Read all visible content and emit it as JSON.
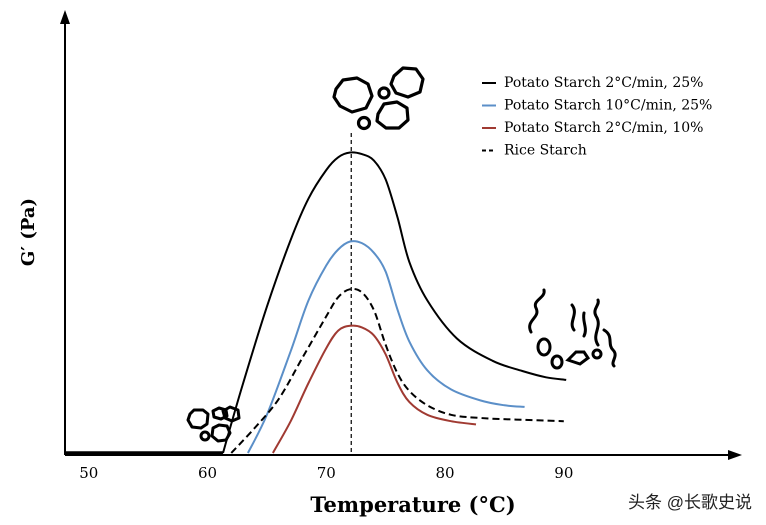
{
  "chart_data": {
    "type": "line",
    "title": "",
    "xlabel": "Temperature (°C)",
    "ylabel": "G′ (Pa)",
    "xlim": [
      48,
      105
    ],
    "ylim": [
      0,
      100
    ],
    "grid": false,
    "legend_position": "top-right",
    "x_ticks": [
      "50",
      "60",
      "70",
      "80",
      "90"
    ],
    "x_tick_values": [
      50,
      60,
      70,
      80,
      90
    ],
    "series": [
      {
        "name": "Potato Starch 2°C/min, 25%",
        "color": "#000000",
        "style": "solid",
        "x": [
          48,
          61.3,
          63,
          65,
          67,
          68.5,
          70,
          71,
          72,
          73,
          74,
          75,
          76,
          77,
          78.5,
          81,
          84,
          86.5,
          88.5,
          90.2
        ],
        "y": [
          0,
          0,
          22,
          46,
          67,
          80,
          89,
          93,
          94.5,
          94,
          92,
          86,
          74,
          60,
          48,
          36,
          29,
          25.8,
          23.8,
          23
        ]
      },
      {
        "name": "Potato Starch 10°C/min, 25%",
        "color": "#5b8fc8",
        "style": "solid",
        "x": [
          63.4,
          65,
          67,
          68.5,
          70,
          71,
          72,
          73,
          74,
          75,
          76,
          77,
          78.5,
          80.5,
          83,
          85,
          86.7
        ],
        "y": [
          0,
          12,
          32,
          48,
          59,
          64,
          66.5,
          66,
          63,
          57,
          45,
          35,
          26,
          20,
          16.5,
          15,
          14.5
        ]
      },
      {
        "name": "Potato Starch 2°C/min, 10%",
        "color": "#a03a32",
        "style": "solid",
        "x": [
          65.5,
          67,
          68.5,
          70,
          71,
          72,
          73,
          74,
          75,
          76,
          77,
          78.5,
          80.5,
          82.6
        ],
        "y": [
          0,
          10,
          22,
          33,
          38.5,
          40,
          39.5,
          37,
          31,
          22,
          16,
          12,
          10,
          9
        ]
      },
      {
        "name": "Rice Starch",
        "color": "#000000",
        "style": "dashed",
        "x": [
          62,
          64,
          66,
          68,
          70,
          71,
          72,
          73,
          74,
          75,
          76,
          77,
          78.5,
          80.5,
          83,
          86,
          90
        ],
        "y": [
          0,
          8,
          17,
          30,
          43,
          49,
          51.5,
          50.5,
          45,
          34,
          25,
          19.5,
          15,
          12,
          11,
          10.5,
          10
        ]
      }
    ],
    "peak_marker_x": 72.1
  },
  "watermark": "头条 @长歌史说",
  "illustrations": {
    "left": "intact-granules-icon",
    "top": "swollen-granules-icon",
    "right": "disrupted-granules-icon"
  }
}
